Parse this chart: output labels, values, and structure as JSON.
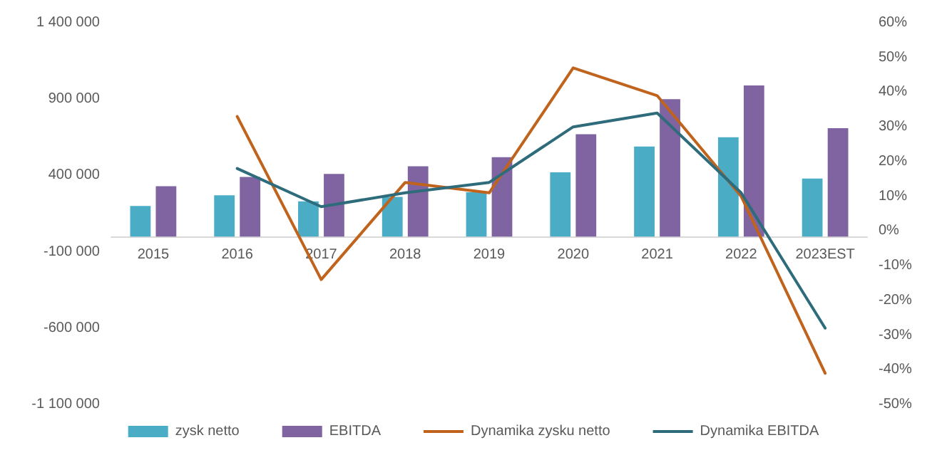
{
  "chart_data": {
    "type": "bar",
    "categories": [
      "2015",
      "2016",
      "2017",
      "2018",
      "2019",
      "2020",
      "2021",
      "2022",
      "2023EST"
    ],
    "series": [
      {
        "name": "zysk netto",
        "color": "#4bacc6",
        "values": [
          200000,
          270000,
          230000,
          260000,
          290000,
          420000,
          590000,
          650000,
          380000
        ]
      },
      {
        "name": "EBITDA",
        "color": "#8064a2",
        "values": [
          330000,
          390000,
          410000,
          460000,
          520000,
          670000,
          900000,
          990000,
          710000
        ]
      },
      {
        "name": "Dynamika zysku netto",
        "type": "line",
        "axis": "y2",
        "color": "#c0631c",
        "values": [
          null,
          33,
          -14,
          14,
          11,
          47,
          39,
          10,
          -41
        ]
      },
      {
        "name": "Dynamika EBITDA",
        "type": "line",
        "axis": "y2",
        "color": "#2e6b7b",
        "values": [
          null,
          18,
          7,
          11,
          14,
          30,
          34,
          11,
          -28
        ]
      }
    ],
    "ylim": [
      -1100000,
      1400000
    ],
    "yticks": [
      {
        "value": -1100000,
        "label": "-1 100 000"
      },
      {
        "value": -600000,
        "label": "-600 000"
      },
      {
        "value": -100000,
        "label": "-100 000"
      },
      {
        "value": 400000,
        "label": "400 000"
      },
      {
        "value": 900000,
        "label": "900 000"
      },
      {
        "value": 1400000,
        "label": "1 400 000"
      }
    ],
    "y2lim": [
      -50,
      60
    ],
    "y2ticks": [
      {
        "value": -50,
        "label": "-50%"
      },
      {
        "value": -40,
        "label": "-40%"
      },
      {
        "value": -30,
        "label": "-30%"
      },
      {
        "value": -20,
        "label": "-20%"
      },
      {
        "value": -10,
        "label": "-10%"
      },
      {
        "value": 0,
        "label": "0%"
      },
      {
        "value": 10,
        "label": "10%"
      },
      {
        "value": 20,
        "label": "20%"
      },
      {
        "value": 30,
        "label": "30%"
      },
      {
        "value": 40,
        "label": "40%"
      },
      {
        "value": 50,
        "label": "50%"
      },
      {
        "value": 60,
        "label": "60%"
      }
    ],
    "grid": false,
    "legend": "bottom",
    "marker": "none",
    "line_style": "solid"
  }
}
